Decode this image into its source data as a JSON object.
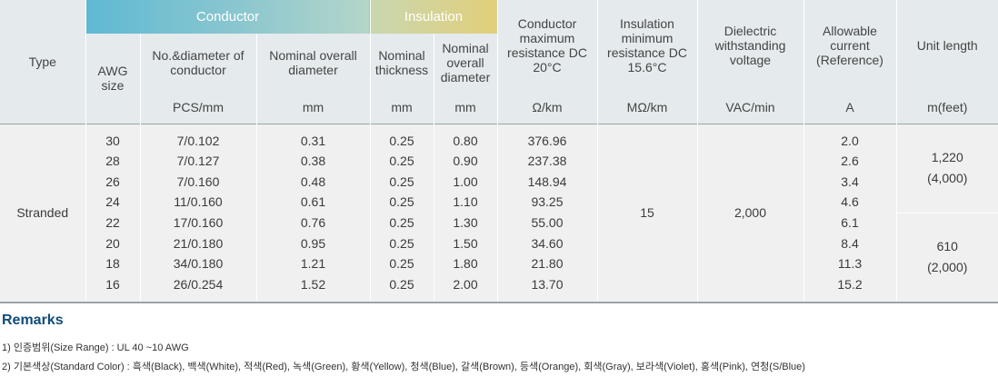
{
  "header": {
    "type": "Type",
    "conductor": "Conductor",
    "insulation": "Insulation",
    "awg_size": "AWG size",
    "no_diameter": "No.&diameter of conductor",
    "cond_overall_diameter": "Nominal overall diameter",
    "nominal_thickness": "Nominal thickness",
    "ins_overall_diameter": "Nominal overall diameter",
    "conductor_resistance": "Conductor maximum resistance DC 20°C",
    "insulation_resistance": "Insulation minimum resistance DC 15.6°C",
    "dielectric": "Dielectric withstanding voltage",
    "allowable_current": "Allowable current (Reference)",
    "unit_length": "Unit length"
  },
  "units": {
    "no_diameter": "PCS/mm",
    "cond_overall_diameter": "mm",
    "nominal_thickness": "mm",
    "ins_overall_diameter": "mm",
    "conductor_resistance": "Ω/km",
    "insulation_resistance": "MΩ/km",
    "dielectric": "VAC/min",
    "allowable_current": "A",
    "unit_length": "m(feet)"
  },
  "body": {
    "type": "Stranded",
    "awg": [
      "30",
      "28",
      "26",
      "24",
      "22",
      "20",
      "18",
      "16"
    ],
    "no_diameter": [
      "7/0.102",
      "7/0.127",
      "7/0.160",
      "11/0.160",
      "17/0.160",
      "21/0.180",
      "34/0.180",
      "26/0.254"
    ],
    "cond_overall_diameter": [
      "0.31",
      "0.38",
      "0.48",
      "0.61",
      "0.76",
      "0.95",
      "1.21",
      "1.52"
    ],
    "nominal_thickness": [
      "0.25",
      "0.25",
      "0.25",
      "0.25",
      "0.25",
      "0.25",
      "0.25",
      "0.25"
    ],
    "ins_overall_diameter": [
      "0.80",
      "0.90",
      "1.00",
      "1.10",
      "1.30",
      "1.50",
      "1.80",
      "2.00"
    ],
    "conductor_resistance": [
      "376.96",
      "237.38",
      "148.94",
      "93.25",
      "55.00",
      "34.60",
      "21.80",
      "13.70"
    ],
    "insulation_resistance": "15",
    "dielectric": "2,000",
    "allowable_current": [
      "2.0",
      "2.6",
      "3.4",
      "4.6",
      "6.1",
      "8.4",
      "11.3",
      "15.2"
    ],
    "unit_length_a": "1,220",
    "unit_length_a_feet": "(4,000)",
    "unit_length_b": "610",
    "unit_length_b_feet": "(2,000)"
  },
  "remarks": {
    "title": "Remarks",
    "line1": "1) 인증범위(Size Range) : UL 40 ~10 AWG",
    "line2": "2) 기본색상(Standard Color) : 흑색(Black), 백색(White), 적색(Red), 녹색(Green), 황색(Yellow), 청색(Blue), 갈색(Brown), 등색(Orange), 회색(Gray), 보라색(Violet), 홍색(Pink), 연청(S/Blue)"
  }
}
